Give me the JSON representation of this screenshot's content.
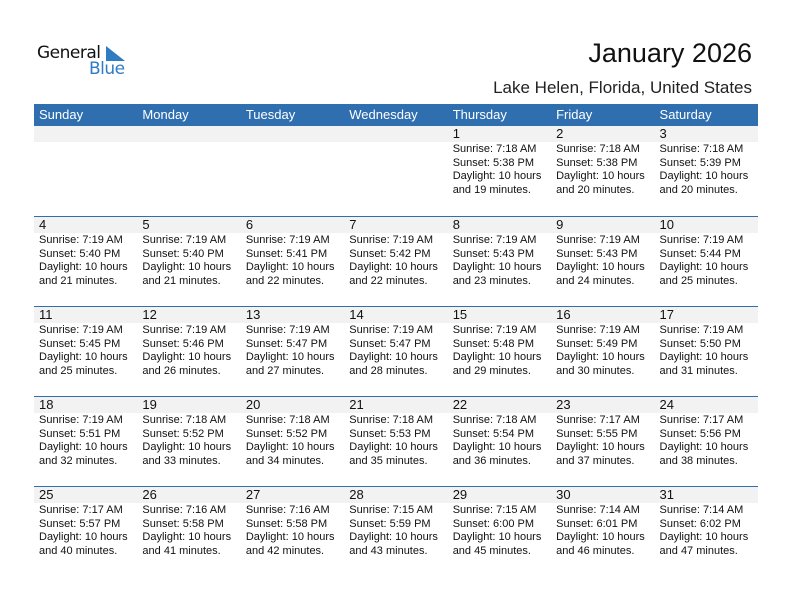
{
  "logo": {
    "word1": "General",
    "word2": "Blue"
  },
  "title": "January 2026",
  "location": "Lake Helen, Florida, United States",
  "colors": {
    "header": "#2f6fb0",
    "date_strip": "#f2f2f2",
    "logo_blue": "#2f7bc4"
  },
  "weekdays": [
    "Sunday",
    "Monday",
    "Tuesday",
    "Wednesday",
    "Thursday",
    "Friday",
    "Saturday"
  ],
  "weeks": [
    [
      null,
      null,
      null,
      null,
      {
        "day": "1",
        "sunrise": "Sunrise: 7:18 AM",
        "sunset": "Sunset: 5:38 PM",
        "daylight1": "Daylight: 10 hours",
        "daylight2": "and 19 minutes."
      },
      {
        "day": "2",
        "sunrise": "Sunrise: 7:18 AM",
        "sunset": "Sunset: 5:38 PM",
        "daylight1": "Daylight: 10 hours",
        "daylight2": "and 20 minutes."
      },
      {
        "day": "3",
        "sunrise": "Sunrise: 7:18 AM",
        "sunset": "Sunset: 5:39 PM",
        "daylight1": "Daylight: 10 hours",
        "daylight2": "and 20 minutes."
      }
    ],
    [
      {
        "day": "4",
        "sunrise": "Sunrise: 7:19 AM",
        "sunset": "Sunset: 5:40 PM",
        "daylight1": "Daylight: 10 hours",
        "daylight2": "and 21 minutes."
      },
      {
        "day": "5",
        "sunrise": "Sunrise: 7:19 AM",
        "sunset": "Sunset: 5:40 PM",
        "daylight1": "Daylight: 10 hours",
        "daylight2": "and 21 minutes."
      },
      {
        "day": "6",
        "sunrise": "Sunrise: 7:19 AM",
        "sunset": "Sunset: 5:41 PM",
        "daylight1": "Daylight: 10 hours",
        "daylight2": "and 22 minutes."
      },
      {
        "day": "7",
        "sunrise": "Sunrise: 7:19 AM",
        "sunset": "Sunset: 5:42 PM",
        "daylight1": "Daylight: 10 hours",
        "daylight2": "and 22 minutes."
      },
      {
        "day": "8",
        "sunrise": "Sunrise: 7:19 AM",
        "sunset": "Sunset: 5:43 PM",
        "daylight1": "Daylight: 10 hours",
        "daylight2": "and 23 minutes."
      },
      {
        "day": "9",
        "sunrise": "Sunrise: 7:19 AM",
        "sunset": "Sunset: 5:43 PM",
        "daylight1": "Daylight: 10 hours",
        "daylight2": "and 24 minutes."
      },
      {
        "day": "10",
        "sunrise": "Sunrise: 7:19 AM",
        "sunset": "Sunset: 5:44 PM",
        "daylight1": "Daylight: 10 hours",
        "daylight2": "and 25 minutes."
      }
    ],
    [
      {
        "day": "11",
        "sunrise": "Sunrise: 7:19 AM",
        "sunset": "Sunset: 5:45 PM",
        "daylight1": "Daylight: 10 hours",
        "daylight2": "and 25 minutes."
      },
      {
        "day": "12",
        "sunrise": "Sunrise: 7:19 AM",
        "sunset": "Sunset: 5:46 PM",
        "daylight1": "Daylight: 10 hours",
        "daylight2": "and 26 minutes."
      },
      {
        "day": "13",
        "sunrise": "Sunrise: 7:19 AM",
        "sunset": "Sunset: 5:47 PM",
        "daylight1": "Daylight: 10 hours",
        "daylight2": "and 27 minutes."
      },
      {
        "day": "14",
        "sunrise": "Sunrise: 7:19 AM",
        "sunset": "Sunset: 5:47 PM",
        "daylight1": "Daylight: 10 hours",
        "daylight2": "and 28 minutes."
      },
      {
        "day": "15",
        "sunrise": "Sunrise: 7:19 AM",
        "sunset": "Sunset: 5:48 PM",
        "daylight1": "Daylight: 10 hours",
        "daylight2": "and 29 minutes."
      },
      {
        "day": "16",
        "sunrise": "Sunrise: 7:19 AM",
        "sunset": "Sunset: 5:49 PM",
        "daylight1": "Daylight: 10 hours",
        "daylight2": "and 30 minutes."
      },
      {
        "day": "17",
        "sunrise": "Sunrise: 7:19 AM",
        "sunset": "Sunset: 5:50 PM",
        "daylight1": "Daylight: 10 hours",
        "daylight2": "and 31 minutes."
      }
    ],
    [
      {
        "day": "18",
        "sunrise": "Sunrise: 7:19 AM",
        "sunset": "Sunset: 5:51 PM",
        "daylight1": "Daylight: 10 hours",
        "daylight2": "and 32 minutes."
      },
      {
        "day": "19",
        "sunrise": "Sunrise: 7:18 AM",
        "sunset": "Sunset: 5:52 PM",
        "daylight1": "Daylight: 10 hours",
        "daylight2": "and 33 minutes."
      },
      {
        "day": "20",
        "sunrise": "Sunrise: 7:18 AM",
        "sunset": "Sunset: 5:52 PM",
        "daylight1": "Daylight: 10 hours",
        "daylight2": "and 34 minutes."
      },
      {
        "day": "21",
        "sunrise": "Sunrise: 7:18 AM",
        "sunset": "Sunset: 5:53 PM",
        "daylight1": "Daylight: 10 hours",
        "daylight2": "and 35 minutes."
      },
      {
        "day": "22",
        "sunrise": "Sunrise: 7:18 AM",
        "sunset": "Sunset: 5:54 PM",
        "daylight1": "Daylight: 10 hours",
        "daylight2": "and 36 minutes."
      },
      {
        "day": "23",
        "sunrise": "Sunrise: 7:17 AM",
        "sunset": "Sunset: 5:55 PM",
        "daylight1": "Daylight: 10 hours",
        "daylight2": "and 37 minutes."
      },
      {
        "day": "24",
        "sunrise": "Sunrise: 7:17 AM",
        "sunset": "Sunset: 5:56 PM",
        "daylight1": "Daylight: 10 hours",
        "daylight2": "and 38 minutes."
      }
    ],
    [
      {
        "day": "25",
        "sunrise": "Sunrise: 7:17 AM",
        "sunset": "Sunset: 5:57 PM",
        "daylight1": "Daylight: 10 hours",
        "daylight2": "and 40 minutes."
      },
      {
        "day": "26",
        "sunrise": "Sunrise: 7:16 AM",
        "sunset": "Sunset: 5:58 PM",
        "daylight1": "Daylight: 10 hours",
        "daylight2": "and 41 minutes."
      },
      {
        "day": "27",
        "sunrise": "Sunrise: 7:16 AM",
        "sunset": "Sunset: 5:58 PM",
        "daylight1": "Daylight: 10 hours",
        "daylight2": "and 42 minutes."
      },
      {
        "day": "28",
        "sunrise": "Sunrise: 7:15 AM",
        "sunset": "Sunset: 5:59 PM",
        "daylight1": "Daylight: 10 hours",
        "daylight2": "and 43 minutes."
      },
      {
        "day": "29",
        "sunrise": "Sunrise: 7:15 AM",
        "sunset": "Sunset: 6:00 PM",
        "daylight1": "Daylight: 10 hours",
        "daylight2": "and 45 minutes."
      },
      {
        "day": "30",
        "sunrise": "Sunrise: 7:14 AM",
        "sunset": "Sunset: 6:01 PM",
        "daylight1": "Daylight: 10 hours",
        "daylight2": "and 46 minutes."
      },
      {
        "day": "31",
        "sunrise": "Sunrise: 7:14 AM",
        "sunset": "Sunset: 6:02 PM",
        "daylight1": "Daylight: 10 hours",
        "daylight2": "and 47 minutes."
      }
    ]
  ]
}
